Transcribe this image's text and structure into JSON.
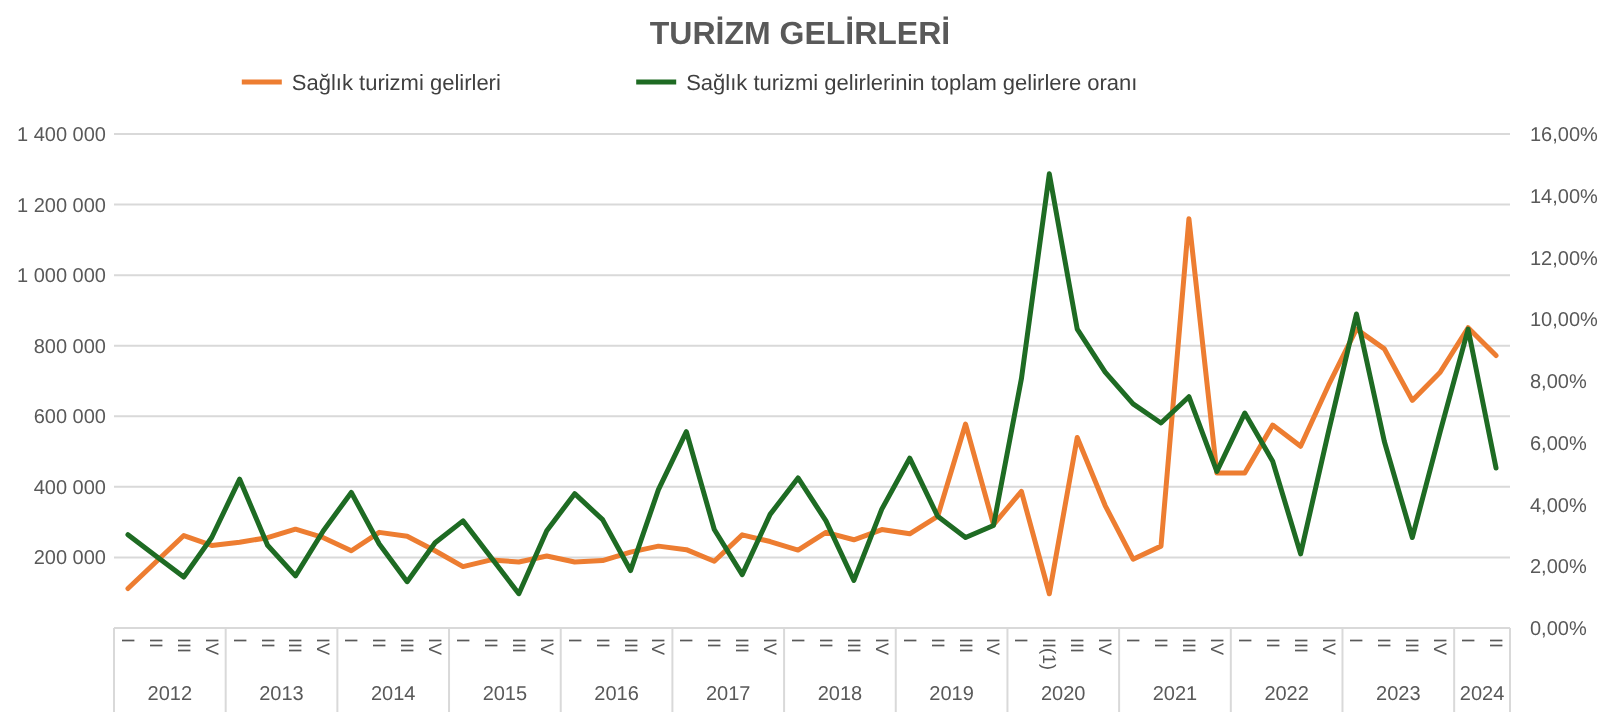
{
  "chart_data": {
    "type": "line",
    "title": "TURİZM GELİRLERİ",
    "categories": [
      "I",
      "II",
      "III",
      "IV",
      "I",
      "II",
      "III",
      "IV",
      "I",
      "II",
      "III",
      "IV",
      "I",
      "II",
      "III",
      "IV",
      "I",
      "II",
      "III",
      "IV",
      "I",
      "II",
      "III",
      "IV",
      "I",
      "II",
      "III",
      "IV",
      "I",
      "II",
      "III",
      "IV",
      "I",
      "II(1)",
      "III",
      "IV",
      "I",
      "II",
      "III",
      "IV",
      "I",
      "II",
      "III",
      "IV",
      "I",
      "II",
      "III",
      "IV",
      "I",
      "II"
    ],
    "annotations": [
      "2012",
      "2013",
      "2014",
      "2015",
      "2016",
      "2017",
      "2018",
      "2019",
      "2020",
      "2021",
      "2022",
      "2023",
      "2024"
    ],
    "series": [
      {
        "name": "Sağlık turizmi gelirleri",
        "color": "#ed7d31",
        "values": [
          112000,
          187000,
          262000,
          234000,
          243000,
          256000,
          280000,
          256000,
          219000,
          271000,
          260000,
          219000,
          174000,
          193000,
          187000,
          204000,
          187000,
          191000,
          215000,
          232000,
          222000,
          189000,
          264000,
          245000,
          221000,
          271000,
          250000,
          279000,
          267000,
          316000,
          578000,
          293000,
          387000,
          97000,
          540000,
          347000,
          195000,
          232000,
          1160000,
          439000,
          439000,
          575000,
          515000,
          688000,
          847000,
          791000,
          645000,
          725000,
          851000,
          772000
        ]
      },
      {
        "name": "Sağlık turizmi gelirlerinin toplam gelirlere oranı",
        "color": "#1e6b23",
        "axis": "y2",
        "values": [
          3.02,
          2.33,
          1.65,
          2.93,
          4.82,
          2.68,
          1.69,
          3.15,
          4.39,
          2.72,
          1.5,
          2.76,
          3.47,
          2.29,
          1.11,
          3.15,
          4.35,
          3.51,
          1.86,
          4.48,
          6.36,
          3.19,
          1.73,
          3.68,
          4.86,
          3.47,
          1.54,
          3.85,
          5.5,
          3.62,
          2.93,
          3.32,
          8.07,
          14.71,
          9.68,
          8.29,
          7.26,
          6.64,
          7.49,
          5.07,
          6.96,
          5.4,
          2.4,
          6.36,
          10.17,
          6.04,
          2.93,
          6.36,
          9.68,
          5.18
        ]
      }
    ],
    "ylim": [
      0,
      1400000
    ],
    "yticks": [
      {
        "value": 200000,
        "label": "200 000"
      },
      {
        "value": 400000,
        "label": "400 000"
      },
      {
        "value": 600000,
        "label": "600 000"
      },
      {
        "value": 800000,
        "label": "800 000"
      },
      {
        "value": 1000000,
        "label": "1 000 000"
      },
      {
        "value": 1200000,
        "label": "1 200 000"
      },
      {
        "value": 1400000,
        "label": "1 400 000"
      }
    ],
    "y2lim": [
      0,
      16
    ],
    "y2ticks": [
      {
        "value": 0,
        "label": "0,00%"
      },
      {
        "value": 2,
        "label": "2,00%"
      },
      {
        "value": 4,
        "label": "4,00%"
      },
      {
        "value": 6,
        "label": "6,00%"
      },
      {
        "value": 8,
        "label": "8,00%"
      },
      {
        "value": 10,
        "label": "10,00%"
      },
      {
        "value": 12,
        "label": "12,00%"
      },
      {
        "value": 14,
        "label": "14,00%"
      },
      {
        "value": 16,
        "label": "16,00%"
      }
    ],
    "grid": "y",
    "legend": "top",
    "marker": "none",
    "line_style": "solid"
  }
}
